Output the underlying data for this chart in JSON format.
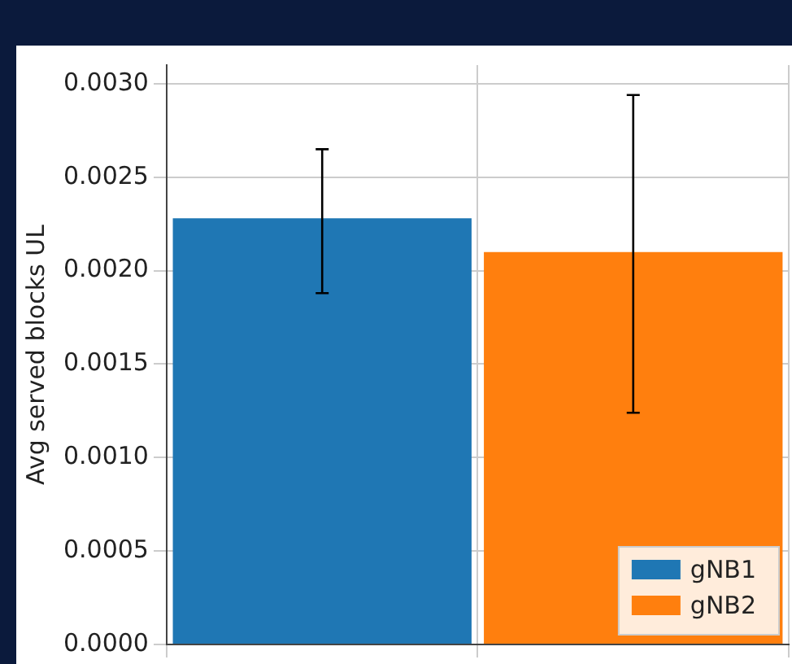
{
  "chart_data": {
    "type": "bar",
    "ylabel": "Avg served blocks UL",
    "categories": [
      null,
      null
    ],
    "series": [
      {
        "name": "gNB1",
        "color": "#1f77b4",
        "values": [
          0.00228,
          null
        ],
        "errors": [
          [
            0.00188,
            0.00265
          ],
          null
        ]
      },
      {
        "name": "gNB2",
        "color": "#ff7f0e",
        "values": [
          null,
          0.0021
        ],
        "errors": [
          null,
          [
            0.00124,
            0.00294
          ]
        ]
      }
    ],
    "ylim": [
      0,
      0.0031
    ],
    "yticks": [
      {
        "value": 0,
        "label": "0.0000"
      },
      {
        "value": 0.0005,
        "label": "0.0005"
      },
      {
        "value": 0.001,
        "label": "0.0010"
      },
      {
        "value": 0.0015,
        "label": "0.0015"
      },
      {
        "value": 0.002,
        "label": "0.0020"
      },
      {
        "value": 0.0025,
        "label": "0.0025"
      },
      {
        "value": 0.003,
        "label": "0.0030"
      }
    ],
    "grid": true,
    "legend": "bottom right"
  }
}
